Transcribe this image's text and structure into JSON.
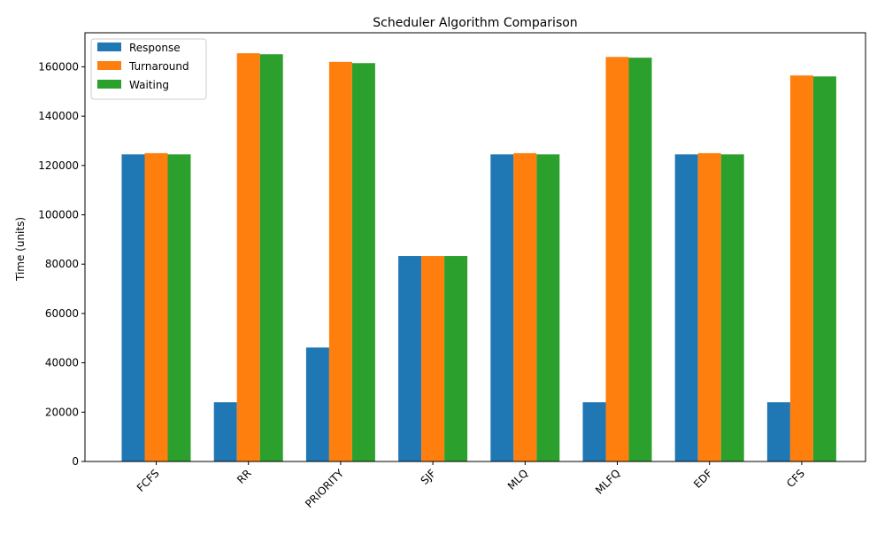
{
  "chart_data": {
    "type": "bar",
    "title": "Scheduler Algorithm Comparison",
    "xlabel": "",
    "ylabel": "Time (units)",
    "categories": [
      "FCFS",
      "RR",
      "PRIORITY",
      "SJF",
      "MLQ",
      "MLFQ",
      "EDF",
      "CFS"
    ],
    "series": [
      {
        "name": "Response",
        "color": "#1f77b4",
        "values": [
          124500,
          24000,
          46200,
          83300,
          124500,
          24000,
          124500,
          24000
        ]
      },
      {
        "name": "Turnaround",
        "color": "#ff7f0e",
        "values": [
          125000,
          165500,
          162000,
          83300,
          125000,
          164000,
          125000,
          156500
        ]
      },
      {
        "name": "Waiting",
        "color": "#2ca02c",
        "values": [
          124500,
          165100,
          161500,
          83300,
          124500,
          163700,
          124500,
          156100
        ]
      }
    ],
    "ylim": [
      0,
      173800
    ],
    "yticks": [
      0,
      20000,
      40000,
      60000,
      80000,
      100000,
      120000,
      140000,
      160000
    ],
    "grid": false,
    "legend_position": "top-left"
  }
}
